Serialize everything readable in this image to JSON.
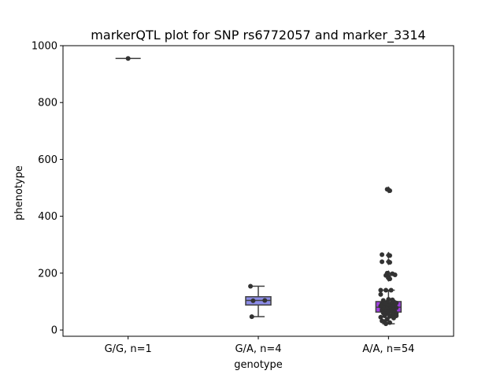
{
  "chart_data": {
    "type": "box",
    "title": "markerQTL plot for SNP rs6772057 and marker_3314",
    "xlabel": "genotype",
    "ylabel": "phenotype",
    "ylim": [
      -22,
      1000
    ],
    "yticks": [
      0,
      200,
      400,
      600,
      800,
      1000
    ],
    "grid": false,
    "categories": [
      "G/G, n=1",
      "G/A, n=4",
      "A/A, n=54"
    ],
    "groups": [
      {
        "label": "G/G, n=1",
        "color": "#5a6fd0",
        "box": {
          "q1": 955,
          "median": 955,
          "q3": 955,
          "whisker_low": 955,
          "whisker_high": 955
        },
        "fliers": [],
        "points": [
          {
            "dx": 0.0,
            "y": 955
          }
        ]
      },
      {
        "label": "G/A, n=4",
        "color": "#8c8ce8",
        "box": {
          "q1": 88,
          "median": 104,
          "q3": 117,
          "whisker_low": 47,
          "whisker_high": 154
        },
        "fliers": [],
        "points": [
          {
            "dx": -0.06,
            "y": 154
          },
          {
            "dx": -0.04,
            "y": 103
          },
          {
            "dx": 0.05,
            "y": 104
          },
          {
            "dx": -0.05,
            "y": 47
          }
        ]
      },
      {
        "label": "A/A, n=54",
        "color": "#a040e0",
        "box": {
          "q1": 63,
          "median": 80,
          "q3": 100,
          "whisker_low": 22,
          "whisker_high": 140
        },
        "fliers": [
          493,
          263,
          240,
          198,
          190,
          182
        ],
        "points": [
          {
            "dx": -0.01,
            "y": 495
          },
          {
            "dx": 0.01,
            "y": 490
          },
          {
            "dx": -0.05,
            "y": 265
          },
          {
            "dx": 0.01,
            "y": 262
          },
          {
            "dx": -0.05,
            "y": 240
          },
          {
            "dx": 0.01,
            "y": 238
          },
          {
            "dx": -0.01,
            "y": 200
          },
          {
            "dx": 0.03,
            "y": 198
          },
          {
            "dx": 0.05,
            "y": 194
          },
          {
            "dx": -0.02,
            "y": 192
          },
          {
            "dx": 0.0,
            "y": 186
          },
          {
            "dx": 0.01,
            "y": 180
          },
          {
            "dx": -0.06,
            "y": 140
          },
          {
            "dx": -0.02,
            "y": 140
          },
          {
            "dx": 0.02,
            "y": 140
          },
          {
            "dx": -0.06,
            "y": 125
          },
          {
            "dx": 0.0,
            "y": 108
          },
          {
            "dx": 0.03,
            "y": 106
          },
          {
            "dx": -0.04,
            "y": 104
          },
          {
            "dx": 0.04,
            "y": 100
          },
          {
            "dx": -0.01,
            "y": 98
          },
          {
            "dx": 0.06,
            "y": 95
          },
          {
            "dx": -0.05,
            "y": 93
          },
          {
            "dx": 0.02,
            "y": 92
          },
          {
            "dx": -0.03,
            "y": 90
          },
          {
            "dx": 0.05,
            "y": 88
          },
          {
            "dx": 0.0,
            "y": 86
          },
          {
            "dx": -0.06,
            "y": 84
          },
          {
            "dx": 0.03,
            "y": 82
          },
          {
            "dx": -0.02,
            "y": 80
          },
          {
            "dx": 0.06,
            "y": 78
          },
          {
            "dx": -0.04,
            "y": 77
          },
          {
            "dx": 0.01,
            "y": 75
          },
          {
            "dx": -0.01,
            "y": 73
          },
          {
            "dx": 0.04,
            "y": 72
          },
          {
            "dx": -0.05,
            "y": 70
          },
          {
            "dx": 0.02,
            "y": 68
          },
          {
            "dx": -0.03,
            "y": 66
          },
          {
            "dx": 0.05,
            "y": 64
          },
          {
            "dx": 0.0,
            "y": 62
          },
          {
            "dx": -0.04,
            "y": 60
          },
          {
            "dx": 0.06,
            "y": 58
          },
          {
            "dx": -0.02,
            "y": 56
          },
          {
            "dx": 0.03,
            "y": 54
          },
          {
            "dx": 0.06,
            "y": 50
          },
          {
            "dx": -0.03,
            "y": 50
          },
          {
            "dx": 0.01,
            "y": 48
          },
          {
            "dx": -0.06,
            "y": 45
          },
          {
            "dx": 0.04,
            "y": 42
          },
          {
            "dx": -0.01,
            "y": 38
          },
          {
            "dx": -0.05,
            "y": 32
          },
          {
            "dx": -0.03,
            "y": 30
          },
          {
            "dx": 0.01,
            "y": 26
          },
          {
            "dx": -0.02,
            "y": 22
          }
        ]
      }
    ]
  }
}
